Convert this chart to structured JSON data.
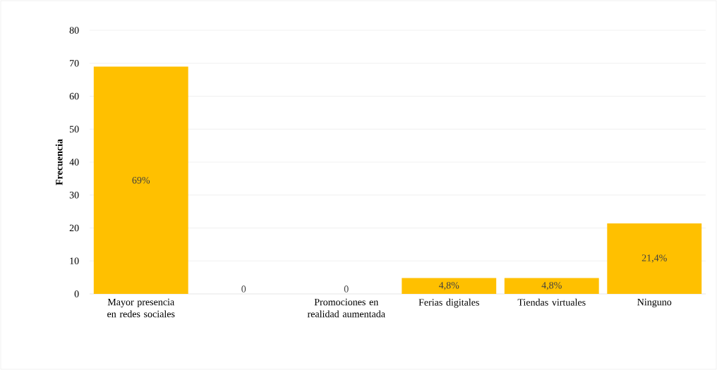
{
  "chart_data": {
    "type": "bar",
    "ylabel": "Frecuencia",
    "categories": [
      "Mayor presencia en redes sociales",
      null,
      "Promociones en realidad aumentada",
      "Ferias digitales",
      "Tiendas virtuales",
      "Ninguno"
    ],
    "values": [
      69,
      0,
      0,
      4.8,
      4.8,
      21.4
    ],
    "value_labels": [
      "69%",
      "0",
      "0",
      "4,8%",
      "4,8%",
      "21,4%"
    ],
    "color": "#ffc000",
    "ylim": [
      0,
      80
    ],
    "yticks": [
      0,
      10,
      20,
      30,
      40,
      50,
      60,
      70,
      80
    ],
    "grid": "y"
  }
}
